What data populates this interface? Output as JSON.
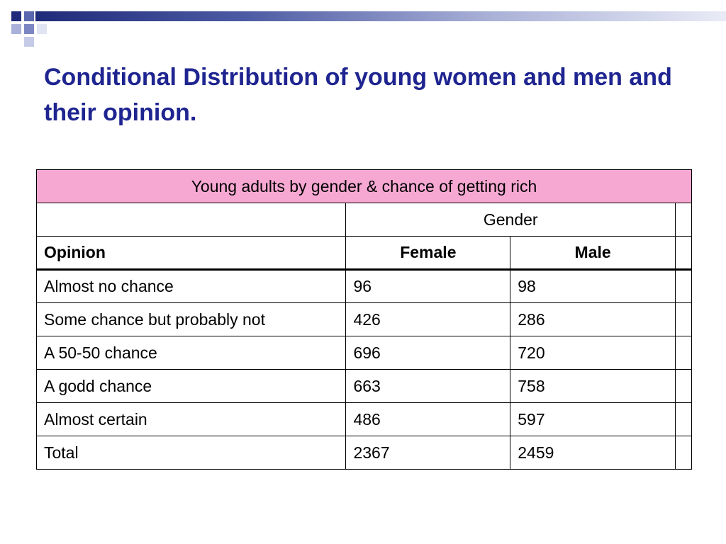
{
  "title": "Conditional Distribution of young women and men and their opinion.",
  "accent_color": "#1f2590",
  "caption_color": "#f7a8d2",
  "table": {
    "caption": "Young adults by gender & chance of getting rich",
    "group_header": "Gender",
    "headers": {
      "opinion": "Opinion",
      "female": "Female",
      "male": "Male"
    },
    "rows": [
      {
        "opinion": "Almost no chance",
        "female": "96",
        "male": "98"
      },
      {
        "opinion": "Some chance but probably not",
        "female": "426",
        "male": "286"
      },
      {
        "opinion": "A 50-50 chance",
        "female": "696",
        "male": "720"
      },
      {
        "opinion": "A godd chance",
        "female": "663",
        "male": "758"
      },
      {
        "opinion": "Almost certain",
        "female": "486",
        "male": "597"
      },
      {
        "opinion": "Total",
        "female": "2367",
        "male": "2459"
      }
    ]
  }
}
